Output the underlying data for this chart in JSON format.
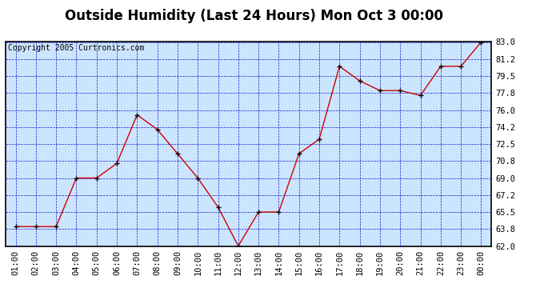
{
  "title": "Outside Humidity (Last 24 Hours) Mon Oct 3 00:00",
  "copyright_text": "Copyright 2005 Curtronics.com",
  "x_labels": [
    "01:00",
    "02:00",
    "03:00",
    "04:00",
    "05:00",
    "06:00",
    "07:00",
    "08:00",
    "09:00",
    "10:00",
    "11:00",
    "12:00",
    "13:00",
    "14:00",
    "15:00",
    "16:00",
    "17:00",
    "18:00",
    "19:00",
    "20:00",
    "21:00",
    "22:00",
    "23:00",
    "00:00"
  ],
  "y_values": [
    64.0,
    64.0,
    64.0,
    69.0,
    69.0,
    70.5,
    75.5,
    74.0,
    71.5,
    69.0,
    66.0,
    62.0,
    65.5,
    65.5,
    71.5,
    73.0,
    80.5,
    79.0,
    78.0,
    78.0,
    77.5,
    80.5,
    80.5,
    83.0
  ],
  "line_color": "#cc0000",
  "marker_color": "#000000",
  "plot_bg_color": "#cce5ff",
  "grid_color": "#0000cc",
  "fig_bg_color": "#ffffff",
  "border_color": "#000000",
  "title_bg_color": "#ffffff",
  "ylim": [
    62.0,
    83.0
  ],
  "yticks": [
    62.0,
    63.8,
    65.5,
    67.2,
    69.0,
    70.8,
    72.5,
    74.2,
    76.0,
    77.8,
    79.5,
    81.2,
    83.0
  ],
  "title_fontsize": 12,
  "tick_fontsize": 7.5,
  "copyright_fontsize": 7
}
